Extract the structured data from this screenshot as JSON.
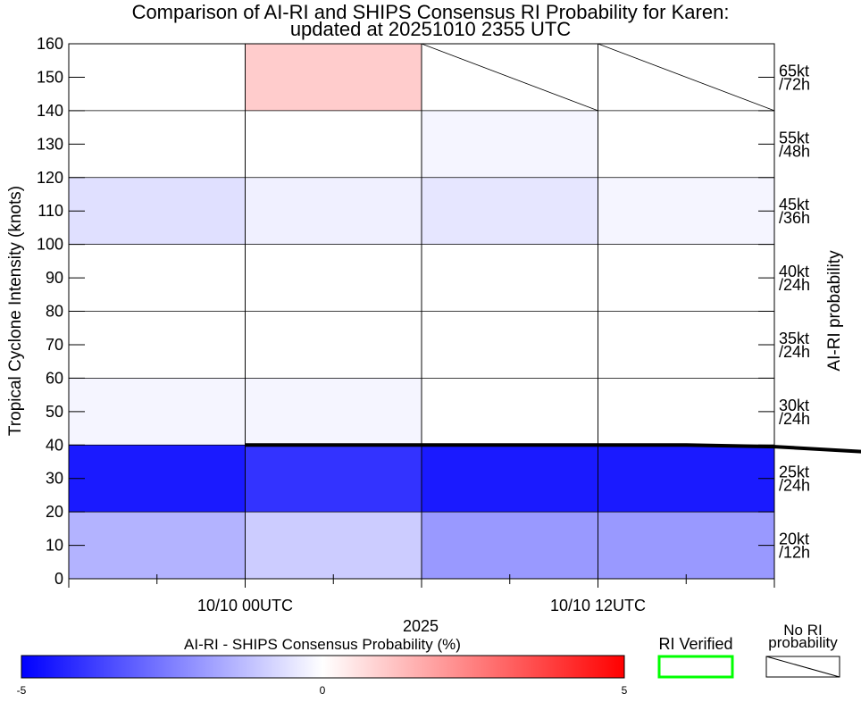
{
  "chart_data": {
    "type": "heatmap",
    "title_line1": "Comparison of AI-RI and SHIPS Consensus RI Probability for Karen:",
    "title_line2": "updated at 20251010 2355 UTC",
    "ylabel": "Tropical Cyclone Intensity (knots)",
    "right_label": "AI-RI probability",
    "year_label": "2025",
    "ylim": [
      0,
      160
    ],
    "yticks": [
      "0",
      "10",
      "20",
      "30",
      "40",
      "50",
      "60",
      "70",
      "80",
      "90",
      "100",
      "110",
      "120",
      "130",
      "140",
      "150",
      "160"
    ],
    "x_hours_range": [
      -6,
      18
    ],
    "x_tick_labels": [
      {
        "hour": 0,
        "text": "10/10 00UTC"
      },
      {
        "hour": 12,
        "text": "10/10 12UTC"
      }
    ],
    "columns_hours": [
      [
        -6,
        0
      ],
      [
        0,
        6
      ],
      [
        6,
        12
      ],
      [
        12,
        18
      ]
    ],
    "rows": [
      {
        "lo": 0,
        "hi": 20,
        "threshold": "20kt",
        "period": "/12h",
        "diffs": [
          -1.5,
          -1.0,
          -2.0,
          -2.0
        ]
      },
      {
        "lo": 20,
        "hi": 40,
        "threshold": "25kt",
        "period": "/24h",
        "diffs": [
          -4.5,
          -4.0,
          -4.5,
          -4.5
        ]
      },
      {
        "lo": 40,
        "hi": 60,
        "threshold": "30kt",
        "period": "/24h",
        "diffs": [
          -0.2,
          -0.2,
          0,
          0
        ]
      },
      {
        "lo": 60,
        "hi": 80,
        "threshold": "35kt",
        "period": "/24h",
        "diffs": [
          0,
          0,
          0,
          0
        ]
      },
      {
        "lo": 80,
        "hi": 100,
        "threshold": "40kt",
        "period": "/24h",
        "diffs": [
          0,
          0,
          0,
          0
        ]
      },
      {
        "lo": 100,
        "hi": 120,
        "threshold": "45kt",
        "period": "/36h",
        "diffs": [
          -0.6,
          -0.3,
          -0.5,
          -0.2
        ]
      },
      {
        "lo": 120,
        "hi": 140,
        "threshold": "55kt",
        "period": "/48h",
        "diffs": [
          0,
          0,
          -0.2,
          0
        ]
      },
      {
        "lo": 140,
        "hi": 160,
        "threshold": "65kt",
        "period": "/72h",
        "diffs": [
          0,
          1.0,
          null,
          null
        ]
      }
    ],
    "intensity_track": {
      "hours": [
        0,
        6,
        12,
        15,
        18,
        21
      ],
      "knots": [
        40,
        40,
        40,
        40,
        39.5,
        38
      ]
    },
    "colorbar": {
      "label": "AI-RI - SHIPS Consensus Probability (%)",
      "min": -5,
      "max": 5,
      "tick_labels": [
        "-5",
        "0",
        "5"
      ],
      "colors": {
        "negative": "#0000ff",
        "zero": "#ffffff",
        "positive": "#ff0000"
      }
    },
    "legend": {
      "verified_label": "RI Verified",
      "verified_color": "#00ff00",
      "no_prob_label_line1": "No RI",
      "no_prob_label_line2": "probability"
    }
  }
}
